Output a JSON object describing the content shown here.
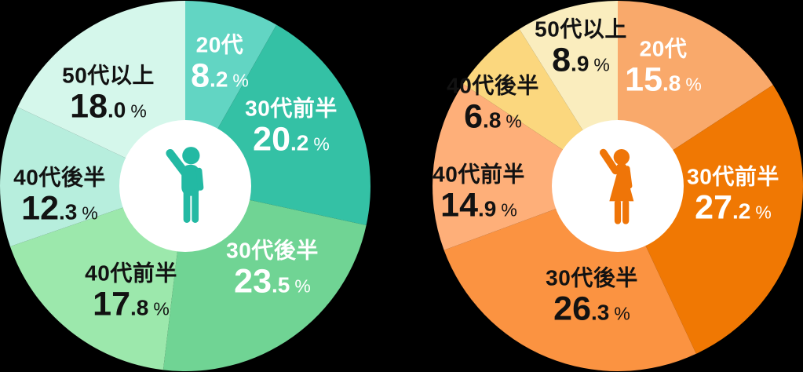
{
  "percent_symbol": "%",
  "background_color": "#000000",
  "chart_data": [
    {
      "type": "pie",
      "center_icon": "male-person-icon",
      "icon_color": "#23B9A3",
      "hole_color": "#FFFFFF",
      "start_angle_deg": 0,
      "direction": "clockwise",
      "legend": "none",
      "categories": [
        "20代",
        "30代前半",
        "30代後半",
        "40代前半",
        "40代後半",
        "50代以上"
      ],
      "values": [
        8.2,
        20.2,
        23.5,
        17.8,
        12.3,
        18.0
      ],
      "colors": [
        "#62D5C3",
        "#34C1A5",
        "#70D494",
        "#9CE8AC",
        "#B7EEDD",
        "#D5F7EB"
      ],
      "label_colors": [
        "#FFFFFF",
        "#FFFFFF",
        "#FFFFFF",
        "#121212",
        "#121212",
        "#121212"
      ]
    },
    {
      "type": "pie",
      "center_icon": "female-person-icon",
      "icon_color": "#EF7508",
      "hole_color": "#FFFFFF",
      "start_angle_deg": 0,
      "direction": "clockwise",
      "legend": "none",
      "categories": [
        "20代",
        "30代前半",
        "30代後半",
        "40代前半",
        "40代後半",
        "50代以上"
      ],
      "values": [
        15.8,
        27.2,
        26.3,
        14.9,
        6.8,
        8.9
      ],
      "colors": [
        "#F9A96B",
        "#F07803",
        "#FB9341",
        "#FEAF79",
        "#FBD77E",
        "#FAEDBE"
      ],
      "label_colors": [
        "#FFFFFF",
        "#FFFFFF",
        "#121212",
        "#121212",
        "#121212",
        "#121212"
      ]
    }
  ]
}
